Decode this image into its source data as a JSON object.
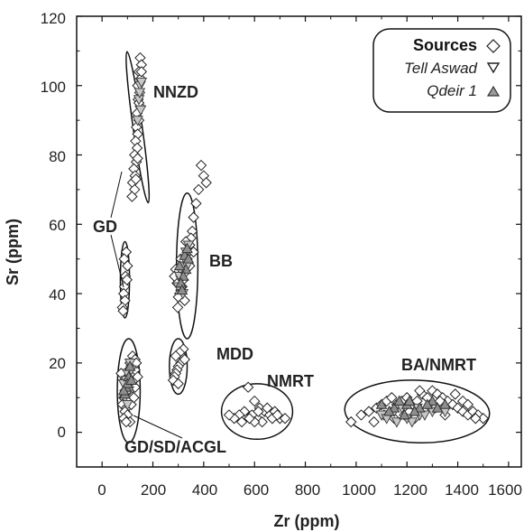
{
  "chart_data": {
    "type": "scatter",
    "xlabel": "Zr (ppm)",
    "ylabel": "Sr (ppm)",
    "xlim": [
      -100,
      1650
    ],
    "ylim": [
      -10,
      120
    ],
    "xticks": [
      0,
      200,
      400,
      600,
      800,
      1000,
      1200,
      1400,
      1600
    ],
    "yticks": [
      0,
      20,
      40,
      60,
      80,
      100,
      120
    ],
    "legend": {
      "placement": "top-right",
      "title": "Sources",
      "items": [
        "Tell Aswad",
        "Qdeir 1"
      ]
    },
    "series": [
      {
        "name": "Sources",
        "marker": "diamond-open",
        "points": [
          [
            150,
            108
          ],
          [
            155,
            106
          ],
          [
            145,
            104
          ],
          [
            152,
            102
          ],
          [
            140,
            100
          ],
          [
            148,
            98
          ],
          [
            142,
            96
          ],
          [
            150,
            94
          ],
          [
            138,
            92
          ],
          [
            145,
            90
          ],
          [
            135,
            88
          ],
          [
            140,
            86
          ],
          [
            132,
            84
          ],
          [
            138,
            82
          ],
          [
            128,
            80
          ],
          [
            135,
            78
          ],
          [
            125,
            76
          ],
          [
            130,
            74
          ],
          [
            120,
            72
          ],
          [
            128,
            70
          ],
          [
            118,
            68
          ],
          [
            140,
            79
          ],
          [
            133,
            73
          ],
          [
            145,
            95
          ],
          [
            155,
            104
          ],
          [
            95,
            52
          ],
          [
            100,
            48
          ],
          [
            92,
            45
          ],
          [
            88,
            42
          ],
          [
            85,
            40
          ],
          [
            90,
            38
          ],
          [
            80,
            36
          ],
          [
            83,
            35
          ],
          [
            98,
            44
          ],
          [
            87,
            50
          ],
          [
            390,
            77
          ],
          [
            400,
            74
          ],
          [
            410,
            72
          ],
          [
            380,
            70
          ],
          [
            370,
            66
          ],
          [
            360,
            62
          ],
          [
            355,
            58
          ],
          [
            350,
            56
          ],
          [
            345,
            54
          ],
          [
            340,
            52
          ],
          [
            335,
            50
          ],
          [
            330,
            48
          ],
          [
            325,
            46
          ],
          [
            320,
            44
          ],
          [
            315,
            42
          ],
          [
            310,
            41
          ],
          [
            305,
            40
          ],
          [
            300,
            39
          ],
          [
            295,
            43
          ],
          [
            290,
            47
          ],
          [
            285,
            45
          ],
          [
            330,
            55
          ],
          [
            345,
            48
          ],
          [
            360,
            52
          ],
          [
            310,
            50
          ],
          [
            325,
            38
          ],
          [
            298,
            36
          ],
          [
            320,
            24
          ],
          [
            315,
            22
          ],
          [
            310,
            20
          ],
          [
            300,
            19
          ],
          [
            295,
            18
          ],
          [
            290,
            17
          ],
          [
            285,
            16
          ],
          [
            280,
            15
          ],
          [
            305,
            23
          ],
          [
            325,
            21
          ],
          [
            300,
            14
          ],
          [
            290,
            22
          ],
          [
            120,
            22
          ],
          [
            130,
            21
          ],
          [
            110,
            20
          ],
          [
            115,
            19
          ],
          [
            105,
            18
          ],
          [
            120,
            17
          ],
          [
            100,
            16
          ],
          [
            125,
            15
          ],
          [
            95,
            14
          ],
          [
            130,
            13
          ],
          [
            90,
            12
          ],
          [
            110,
            11
          ],
          [
            85,
            10
          ],
          [
            100,
            9
          ],
          [
            80,
            8
          ],
          [
            95,
            7
          ],
          [
            90,
            6
          ],
          [
            100,
            5
          ],
          [
            85,
            4
          ],
          [
            110,
            3
          ],
          [
            95,
            3
          ],
          [
            115,
            8
          ],
          [
            125,
            10
          ],
          [
            105,
            12
          ],
          [
            130,
            18
          ],
          [
            135,
            20
          ],
          [
            88,
            15
          ],
          [
            75,
            17
          ],
          [
            140,
            16
          ],
          [
            575,
            13
          ],
          [
            600,
            9
          ],
          [
            620,
            7
          ],
          [
            640,
            6
          ],
          [
            660,
            5
          ],
          [
            680,
            6
          ],
          [
            700,
            4
          ],
          [
            560,
            6
          ],
          [
            540,
            5
          ],
          [
            520,
            4
          ],
          [
            500,
            5
          ],
          [
            610,
            4
          ],
          [
            630,
            3
          ],
          [
            590,
            5
          ],
          [
            650,
            7
          ],
          [
            670,
            4
          ],
          [
            600,
            3
          ],
          [
            580,
            4
          ],
          [
            690,
            5
          ],
          [
            720,
            4
          ],
          [
            550,
            3
          ],
          [
            615,
            6
          ],
          [
            980,
            3
          ],
          [
            1020,
            5
          ],
          [
            1050,
            6
          ],
          [
            1080,
            7
          ],
          [
            1100,
            8
          ],
          [
            1120,
            9
          ],
          [
            1140,
            10
          ],
          [
            1160,
            8
          ],
          [
            1180,
            9
          ],
          [
            1200,
            10
          ],
          [
            1220,
            8
          ],
          [
            1240,
            9
          ],
          [
            1260,
            11
          ],
          [
            1280,
            10
          ],
          [
            1300,
            12
          ],
          [
            1320,
            11
          ],
          [
            1340,
            10
          ],
          [
            1360,
            9
          ],
          [
            1380,
            8
          ],
          [
            1400,
            7
          ],
          [
            1420,
            6
          ],
          [
            1440,
            5
          ],
          [
            1460,
            6
          ],
          [
            1480,
            5
          ],
          [
            1500,
            4
          ],
          [
            1350,
            5
          ],
          [
            1310,
            7
          ],
          [
            1270,
            6
          ],
          [
            1230,
            4
          ],
          [
            1190,
            5
          ],
          [
            1150,
            4
          ],
          [
            1110,
            5
          ],
          [
            1070,
            3
          ],
          [
            1420,
            9
          ],
          [
            1390,
            11
          ],
          [
            1330,
            9
          ],
          [
            1250,
            12
          ],
          [
            1470,
            4
          ],
          [
            1440,
            8
          ],
          [
            1210,
            6
          ]
        ]
      },
      {
        "name": "Tell Aswad",
        "marker": "triangle-down",
        "points": [
          [
            150,
            100
          ],
          [
            145,
            96
          ],
          [
            140,
            90
          ],
          [
            148,
            98
          ],
          [
            152,
            93
          ],
          [
            155,
            101
          ],
          [
            330,
            52
          ],
          [
            320,
            48
          ],
          [
            315,
            46
          ],
          [
            310,
            44
          ],
          [
            325,
            50
          ],
          [
            300,
            42
          ],
          [
            340,
            54
          ],
          [
            305,
            45
          ],
          [
            318,
            40
          ],
          [
            335,
            48
          ],
          [
            110,
            20
          ],
          [
            100,
            17
          ],
          [
            95,
            15
          ],
          [
            105,
            12
          ],
          [
            90,
            10
          ],
          [
            115,
            18
          ],
          [
            85,
            14
          ],
          [
            100,
            8
          ],
          [
            1100,
            5
          ],
          [
            1150,
            6
          ],
          [
            1200,
            4
          ],
          [
            1250,
            5
          ],
          [
            1300,
            6
          ],
          [
            1180,
            7
          ],
          [
            1220,
            3
          ],
          [
            1120,
            4
          ],
          [
            1270,
            5
          ],
          [
            1350,
            6
          ],
          [
            1160,
            3
          ],
          [
            1240,
            7
          ]
        ]
      },
      {
        "name": "Qdeir 1",
        "marker": "triangle-up",
        "points": [
          [
            330,
            47
          ],
          [
            320,
            45
          ],
          [
            310,
            43
          ],
          [
            325,
            51
          ],
          [
            315,
            41
          ],
          [
            340,
            50
          ],
          [
            305,
            48
          ],
          [
            335,
            53
          ],
          [
            105,
            16
          ],
          [
            95,
            13
          ],
          [
            110,
            19
          ],
          [
            90,
            11
          ],
          [
            100,
            14
          ],
          [
            115,
            15
          ],
          [
            85,
            12
          ],
          [
            1100,
            8
          ],
          [
            1150,
            7
          ],
          [
            1200,
            8
          ],
          [
            1250,
            7
          ],
          [
            1300,
            9
          ],
          [
            1170,
            9
          ],
          [
            1230,
            6
          ],
          [
            1280,
            8
          ],
          [
            1130,
            6
          ],
          [
            1320,
            7
          ],
          [
            1190,
            5
          ],
          [
            1210,
            9
          ],
          [
            1350,
            8
          ]
        ]
      }
    ],
    "ellipses": [
      {
        "cx": 140,
        "cy": 88,
        "rx": 18,
        "ry": 22,
        "angle_deg": -8
      },
      {
        "cx": 90,
        "cy": 44,
        "rx": 18,
        "ry": 11,
        "angle_deg": 0
      },
      {
        "cx": 335,
        "cy": 48,
        "rx": 42,
        "ry": 21,
        "angle_deg": 0
      },
      {
        "cx": 300,
        "cy": 19,
        "rx": 35,
        "ry": 8,
        "angle_deg": 0
      },
      {
        "cx": 105,
        "cy": 12,
        "rx": 45,
        "ry": 15,
        "angle_deg": 0
      },
      {
        "cx": 610,
        "cy": 6,
        "rx": 140,
        "ry": 8,
        "angle_deg": 0
      },
      {
        "cx": 1240,
        "cy": 6,
        "rx": 285,
        "ry": 9,
        "angle_deg": 2
      }
    ],
    "group_labels": [
      "NNZD",
      "GD",
      "BB",
      "MDD",
      "NMRT",
      "BA/NMRT",
      "GD/SD/ACGL"
    ]
  }
}
